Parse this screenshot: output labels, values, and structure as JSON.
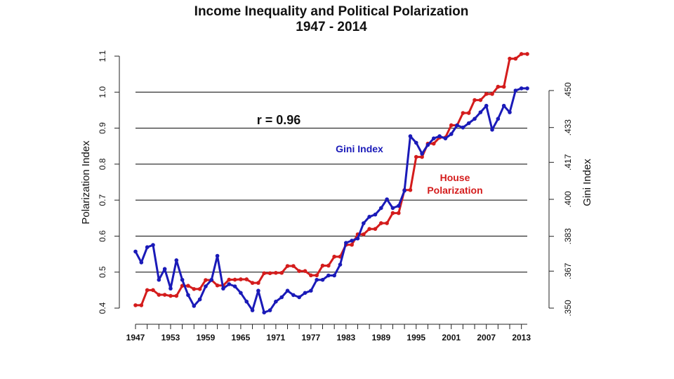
{
  "chart_data": {
    "type": "line",
    "title": "Income Inequality and Political Polarization",
    "subtitle": "1947 - 2014",
    "ylabel_left": "Polarization Index",
    "ylabel_right": "Gini Index",
    "ylim_left": [
      0.4,
      1.1
    ],
    "left_ticks": [
      "0.4",
      "0.5",
      "0.6",
      "0.7",
      "0.8",
      "0.9",
      "1.0",
      "1.1"
    ],
    "ylim_right_gini": [
      0.35,
      0.45
    ],
    "right_ticks": [
      ".350",
      ".367",
      ".383",
      ".400",
      ".417",
      ".433",
      ".450"
    ],
    "xlim": [
      1947,
      2014
    ],
    "x_tick_labels": [
      "1947",
      "1953",
      "1959",
      "1965",
      "1971",
      "1977",
      "1983",
      "1989",
      "1995",
      "2001",
      "2007",
      "2013"
    ],
    "grid": "horizontal",
    "annotation": "r = 0.96",
    "colors": {
      "house": "#d41c1c",
      "gini": "#1a1ab8"
    },
    "series": [
      {
        "name": "House Polarization",
        "label_lines": [
          "House",
          "Polarization"
        ],
        "x": [
          1947,
          1948,
          1949,
          1950,
          1951,
          1952,
          1953,
          1954,
          1955,
          1956,
          1957,
          1958,
          1959,
          1960,
          1961,
          1962,
          1963,
          1964,
          1965,
          1966,
          1967,
          1968,
          1969,
          1970,
          1971,
          1972,
          1973,
          1974,
          1975,
          1976,
          1977,
          1978,
          1979,
          1980,
          1981,
          1982,
          1983,
          1984,
          1985,
          1986,
          1987,
          1988,
          1989,
          1990,
          1991,
          1992,
          1993,
          1994,
          1995,
          1996,
          1997,
          1998,
          1999,
          2000,
          2001,
          2002,
          2003,
          2004,
          2005,
          2006,
          2007,
          2008,
          2009,
          2010,
          2011,
          2012,
          2013,
          2014
        ],
        "values": [
          0.408,
          0.408,
          0.45,
          0.45,
          0.437,
          0.437,
          0.434,
          0.434,
          0.462,
          0.462,
          0.453,
          0.453,
          0.478,
          0.478,
          0.463,
          0.463,
          0.479,
          0.479,
          0.48,
          0.48,
          0.47,
          0.47,
          0.497,
          0.497,
          0.498,
          0.498,
          0.517,
          0.517,
          0.503,
          0.503,
          0.491,
          0.491,
          0.518,
          0.518,
          0.543,
          0.543,
          0.576,
          0.576,
          0.605,
          0.605,
          0.62,
          0.62,
          0.636,
          0.636,
          0.664,
          0.664,
          0.728,
          0.728,
          0.82,
          0.82,
          0.857,
          0.857,
          0.874,
          0.874,
          0.908,
          0.908,
          0.942,
          0.942,
          0.978,
          0.978,
          0.995,
          0.995,
          1.015,
          1.015,
          1.093,
          1.093,
          1.106,
          1.106
        ]
      },
      {
        "name": "Gini Index",
        "x": [
          1947,
          1948,
          1949,
          1950,
          1951,
          1952,
          1953,
          1954,
          1955,
          1956,
          1957,
          1958,
          1959,
          1960,
          1961,
          1962,
          1963,
          1964,
          1965,
          1966,
          1967,
          1968,
          1969,
          1970,
          1971,
          1972,
          1973,
          1974,
          1975,
          1976,
          1977,
          1978,
          1979,
          1980,
          1981,
          1982,
          1983,
          1984,
          1985,
          1986,
          1987,
          1988,
          1989,
          1990,
          1991,
          1992,
          1993,
          1994,
          1995,
          1996,
          1997,
          1998,
          1999,
          2000,
          2001,
          2002,
          2003,
          2004,
          2005,
          2006,
          2007,
          2008,
          2009,
          2010,
          2011,
          2012,
          2013,
          2014
        ],
        "values": [
          0.376,
          0.371,
          0.378,
          0.379,
          0.363,
          0.368,
          0.359,
          0.372,
          0.363,
          0.356,
          0.351,
          0.354,
          0.36,
          0.363,
          0.374,
          0.359,
          0.361,
          0.36,
          0.357,
          0.353,
          0.349,
          0.358,
          0.348,
          0.349,
          0.353,
          0.355,
          0.358,
          0.356,
          0.355,
          0.357,
          0.358,
          0.363,
          0.363,
          0.365,
          0.365,
          0.37,
          0.38,
          0.381,
          0.382,
          0.389,
          0.392,
          0.393,
          0.396,
          0.4,
          0.396,
          0.397,
          0.404,
          0.429,
          0.426,
          0.421,
          0.425,
          0.428,
          0.429,
          0.428,
          0.43,
          0.434,
          0.433,
          0.435,
          0.437,
          0.44,
          0.443,
          0.432,
          0.437,
          0.443,
          0.44,
          0.45,
          0.451,
          0.451
        ]
      }
    ]
  }
}
